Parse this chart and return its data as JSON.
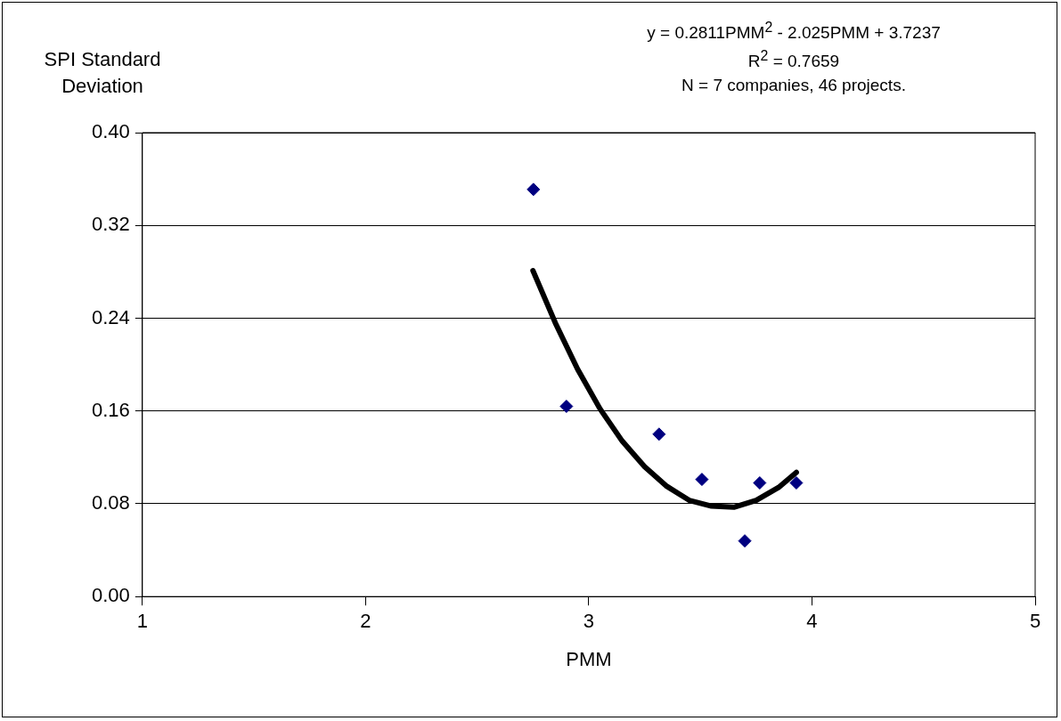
{
  "chart_data": {
    "type": "scatter",
    "xlabel": "PMM",
    "ylabel": "SPI Standard Deviation",
    "annotations": [
      "y = 0.2811PMM$^{2}$ - 2.025PMM + 3.7237",
      "R$^{2}$ = 0.7659",
      "N = 7 companies, 46 projects."
    ],
    "series": [
      {
        "type": "scatter",
        "color": "#000080",
        "marker": "diamond",
        "x": [
          2.752,
          2.9,
          3.315,
          3.507,
          3.699,
          3.766,
          3.93
        ],
        "values": [
          0.351,
          0.164,
          0.14,
          0.101,
          0.048,
          0.098,
          0.098
        ]
      },
      {
        "type": "line",
        "color": "#000000",
        "marker": "none",
        "x": [
          2.75,
          2.85,
          2.95,
          3.05,
          3.15,
          3.25,
          3.35,
          3.45,
          3.55,
          3.65,
          3.75,
          3.85,
          3.93
        ],
        "values": [
          0.281,
          0.236,
          0.196,
          0.162,
          0.134,
          0.112,
          0.095,
          0.083,
          0.078,
          0.077,
          0.083,
          0.094,
          0.107
        ]
      }
    ],
    "xlim": [
      1,
      5
    ],
    "xticks": [
      1,
      2,
      3,
      4,
      5
    ],
    "ylim": [
      0,
      0.4
    ],
    "yticks": [
      {
        "value": 0,
        "label": "0.00"
      },
      {
        "value": 0.08,
        "label": "0.08"
      },
      {
        "value": 0.16,
        "label": "0.16"
      },
      {
        "value": 0.24,
        "label": "0.24"
      },
      {
        "value": 0.32,
        "label": "0.32"
      },
      {
        "value": 0.4,
        "label": "0.40"
      }
    ],
    "grid": "y",
    "legend": false
  }
}
